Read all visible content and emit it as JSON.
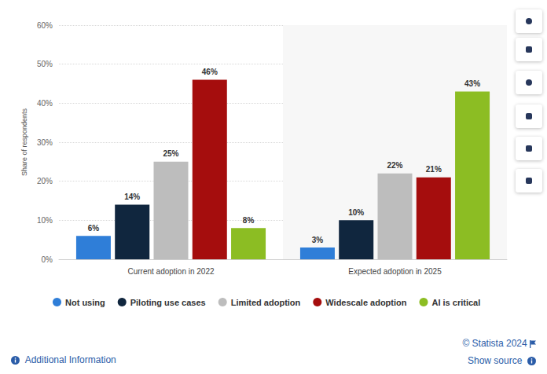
{
  "chart_data": {
    "type": "bar",
    "y_label": "Share of respondents",
    "categories": [
      "Current adoption in 2022",
      "Expected adoption in 2025"
    ],
    "series": [
      {
        "name": "Not using",
        "color": "#2f7ed8",
        "values": [
          6,
          3
        ],
        "value_labels": [
          "6%",
          "3%"
        ]
      },
      {
        "name": "Piloting use cases",
        "color": "#10263e",
        "values": [
          14,
          10
        ],
        "value_labels": [
          "14%",
          "10%"
        ]
      },
      {
        "name": "Limited adoption",
        "color": "#bdbdbd",
        "values": [
          25,
          22
        ],
        "value_labels": [
          "25%",
          "22%"
        ]
      },
      {
        "name": "Widescale adoption",
        "color": "#a50d0d",
        "values": [
          46,
          21
        ],
        "value_labels": [
          "46%",
          "21%"
        ]
      },
      {
        "name": "AI is critical",
        "color": "#8cbd23",
        "values": [
          8,
          43
        ],
        "value_labels": [
          "8%",
          "43%"
        ]
      }
    ],
    "ylim": [
      0,
      60
    ],
    "yticks": [
      {
        "value": 0,
        "label": "0%"
      },
      {
        "value": 10,
        "label": "10%"
      },
      {
        "value": 20,
        "label": "20%"
      },
      {
        "value": 30,
        "label": "30%"
      },
      {
        "value": 40,
        "label": "40%"
      },
      {
        "value": 50,
        "label": "50%"
      },
      {
        "value": 60,
        "label": "60%"
      }
    ],
    "grid": true,
    "legend": "bottom",
    "data_labels": true,
    "annotations": [
      "© Statista 2024",
      "Additional Information",
      "Show source"
    ]
  }
}
